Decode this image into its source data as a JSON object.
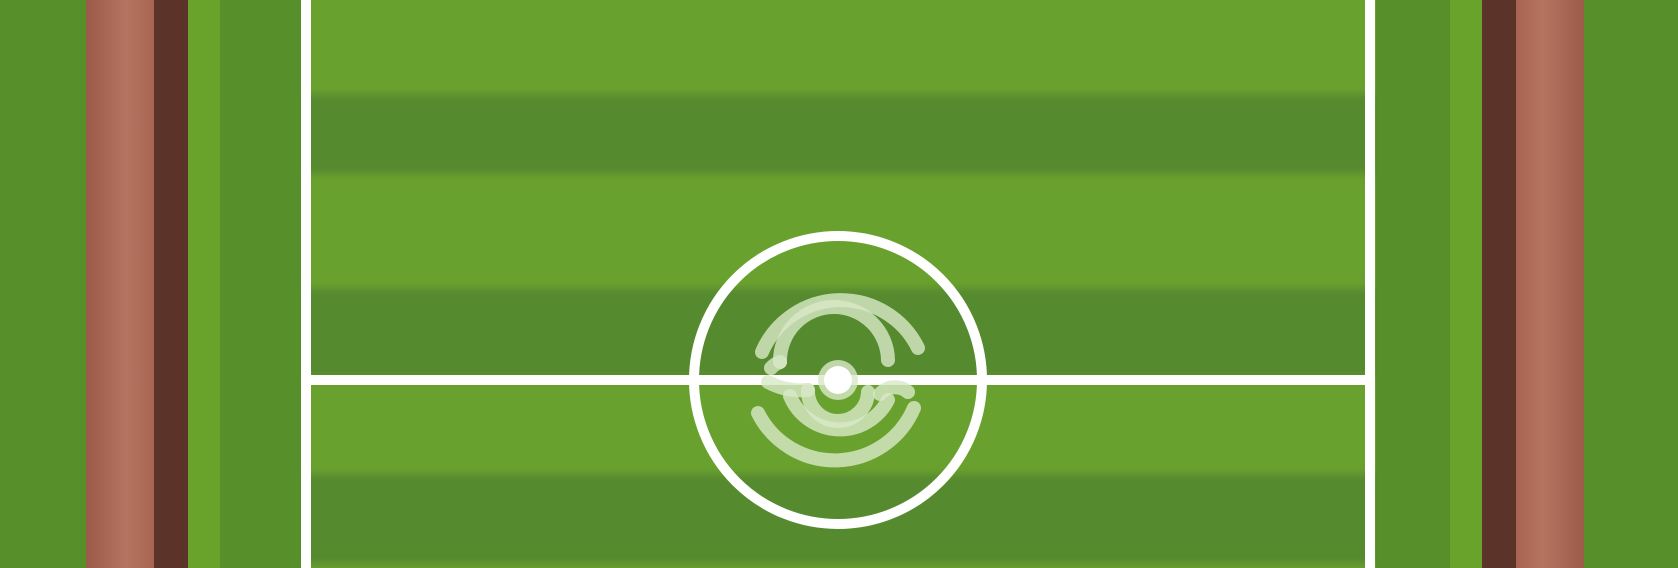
{
  "scene": {
    "type": "soccer-pitch-top-down",
    "colors": {
      "grass_dark": "#578a2e",
      "grass_light": "#69a12e",
      "outer_grass": "#57902b",
      "track_red": "#a76250",
      "track_red_light": "#b47460",
      "track_brown": "#5b3328",
      "accent_green": "#6aa32b",
      "line_white": "#ffffff",
      "logo_white": "#d9e8c8"
    },
    "icons": {
      "center_logo": "spiral-logo-icon",
      "center_spot": "center-spot-icon"
    }
  }
}
